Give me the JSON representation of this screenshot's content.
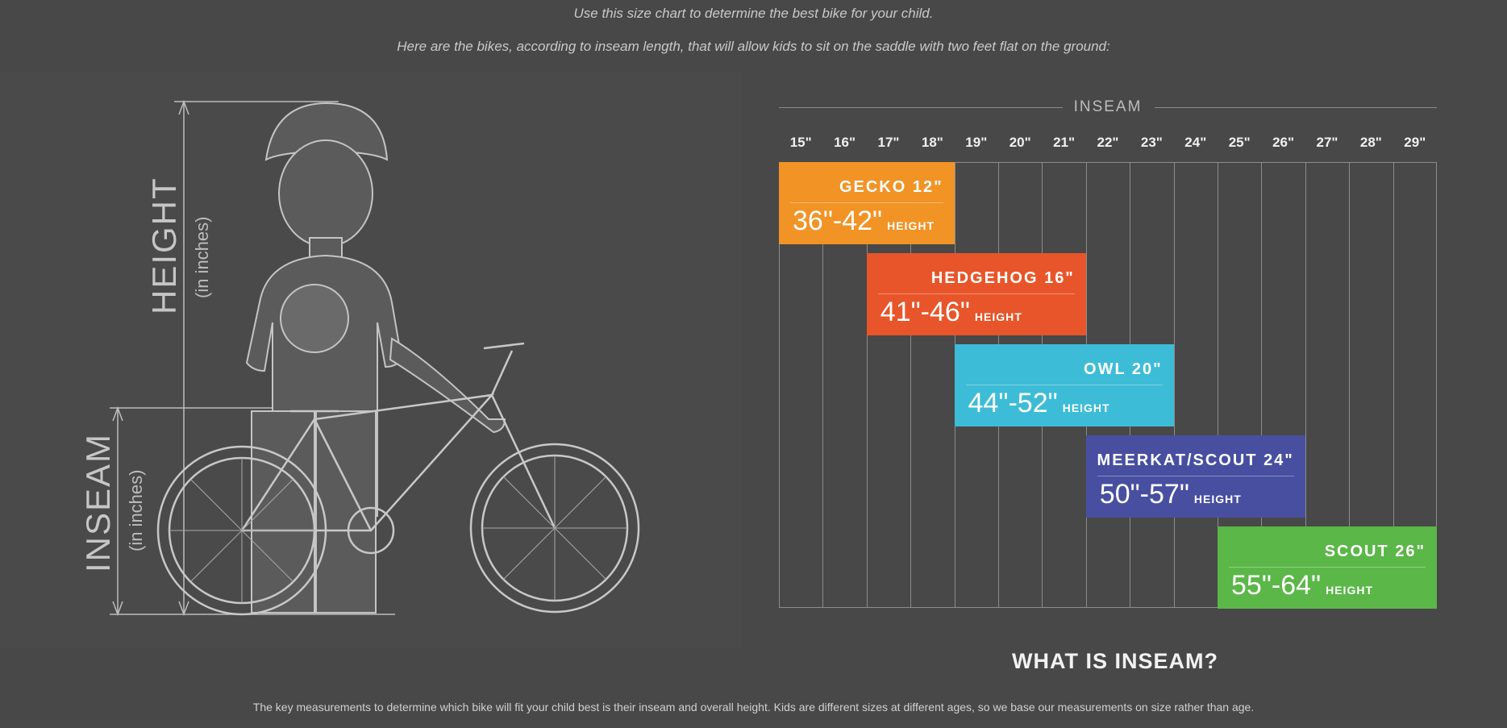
{
  "intro": {
    "line1": "Use this size chart to determine the best bike for your child.",
    "line2": "Here are the bikes, according to inseam length, that will allow kids to sit on the saddle with two feet flat on the ground:"
  },
  "illustration": {
    "height_label": "HEIGHT",
    "height_unit": "(in inches)",
    "inseam_label": "INSEAM",
    "inseam_unit": "(in inches)"
  },
  "chart_data": {
    "type": "table",
    "title": "INSEAM",
    "inseam_ticks": [
      "15\"",
      "16\"",
      "17\"",
      "18\"",
      "19\"",
      "20\"",
      "21\"",
      "22\"",
      "23\"",
      "24\"",
      "25\"",
      "26\"",
      "27\"",
      "28\"",
      "29\""
    ],
    "bikes": [
      {
        "name": "GECKO 12\"",
        "height_range": "36\"-42\"",
        "height_label": "HEIGHT",
        "inseam_min": 15,
        "inseam_max": 19,
        "color": "#f29325"
      },
      {
        "name": "HEDGEHOG 16\"",
        "height_range": "41\"-46\"",
        "height_label": "HEIGHT",
        "inseam_min": 17,
        "inseam_max": 22,
        "color": "#e8552a"
      },
      {
        "name": "OWL 20\"",
        "height_range": "44\"-52\"",
        "height_label": "HEIGHT",
        "inseam_min": 19,
        "inseam_max": 24,
        "color": "#3dbcd7"
      },
      {
        "name": "MEERKAT/SCOUT 24\"",
        "height_range": "50\"-57\"",
        "height_label": "HEIGHT",
        "inseam_min": 22,
        "inseam_max": 27,
        "color": "#484fa1"
      },
      {
        "name": "SCOUT 26\"",
        "height_range": "55\"-64\"",
        "height_label": "HEIGHT",
        "inseam_min": 25,
        "inseam_max": 30,
        "color": "#5ab748"
      }
    ]
  },
  "what_is_inseam": "WHAT IS INSEAM?",
  "bottom_text": "The key measurements to determine which bike will fit your child best is their inseam and overall height.  Kids are different sizes at different ages, so we base our measurements on size rather than age."
}
